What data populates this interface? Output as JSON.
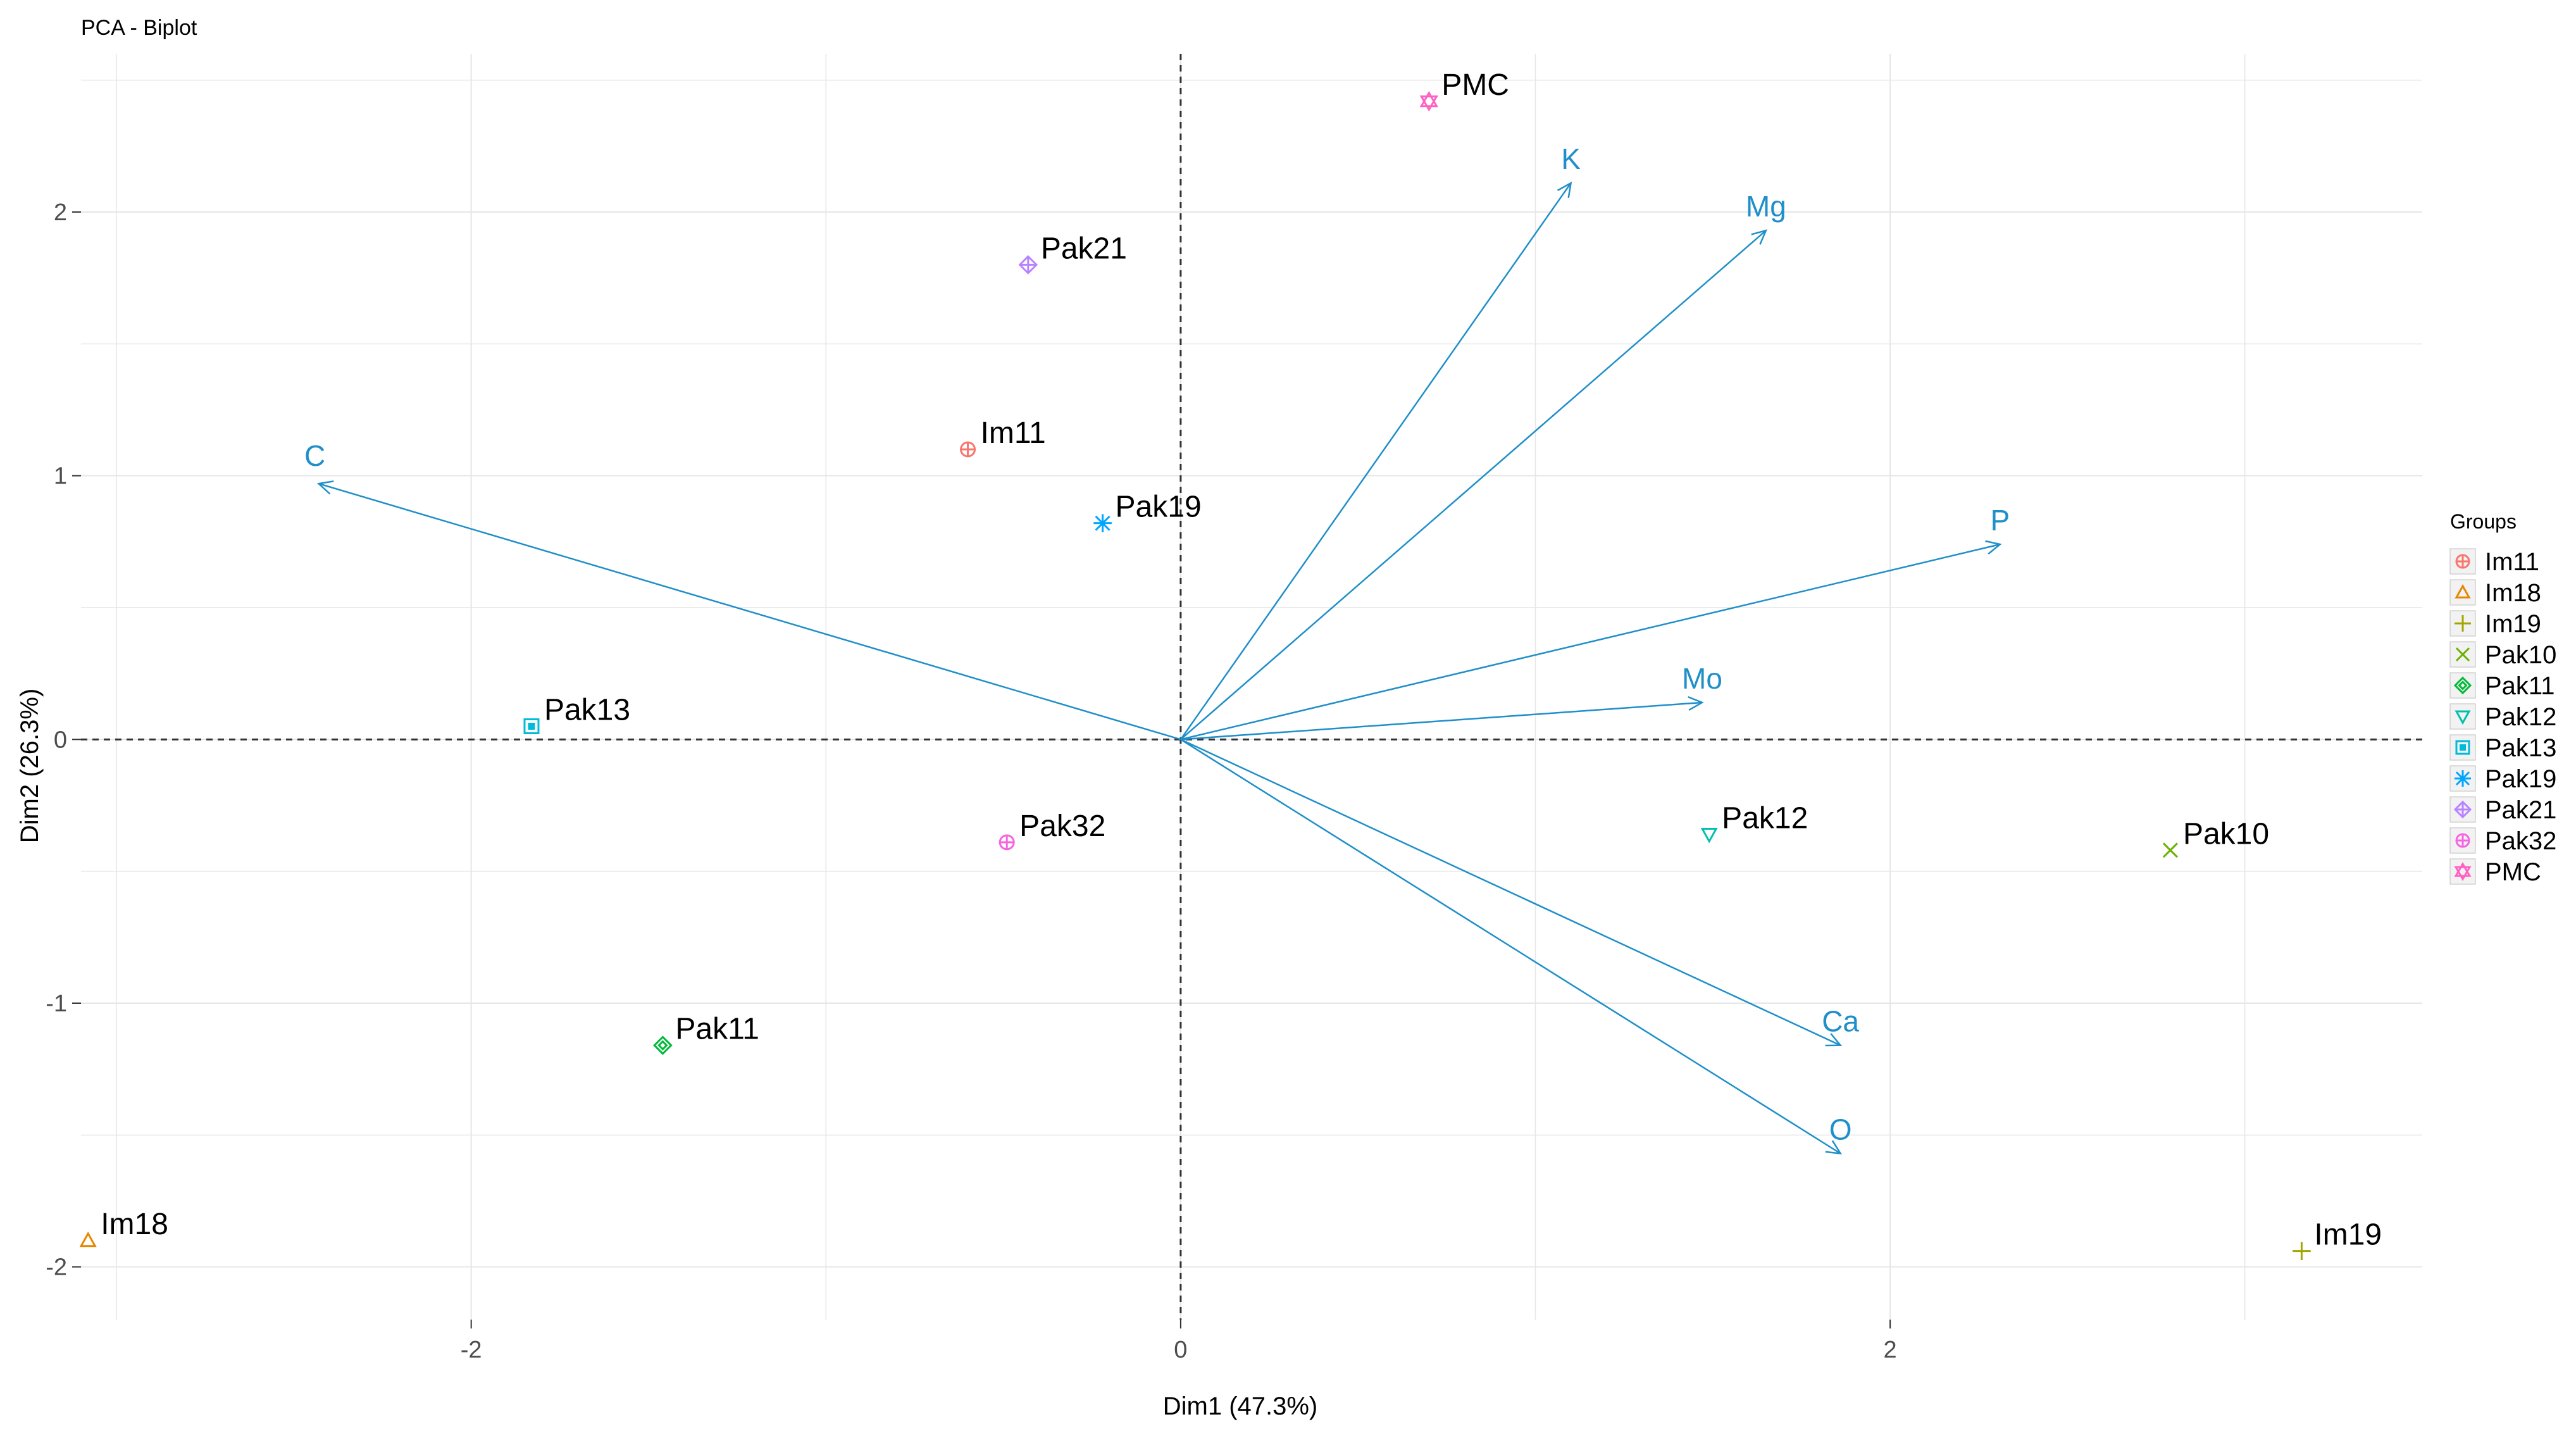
{
  "chart_data": {
    "type": "scatter",
    "title": "PCA - Biplot",
    "xlabel": "Dim1 (47.3%)",
    "ylabel": "Dim2 (26.3%)",
    "xlim": [
      -3.1,
      3.5
    ],
    "ylim": [
      -2.2,
      2.6
    ],
    "grid": true,
    "legend_placement": "right",
    "zero_lines": true,
    "x_ticks": [
      {
        "value": -2,
        "label": "-2"
      },
      {
        "value": 0,
        "label": "0"
      },
      {
        "value": 2,
        "label": "2"
      }
    ],
    "y_ticks": [
      {
        "value": -2,
        "label": "-2"
      },
      {
        "value": -1,
        "label": "-1"
      },
      {
        "value": 0,
        "label": "0"
      },
      {
        "value": 1,
        "label": "1"
      },
      {
        "value": 2,
        "label": "2"
      }
    ],
    "legend": {
      "title": "Groups",
      "entries": [
        {
          "name": "Im11",
          "color": "#F8766D",
          "marker": "circle-plus"
        },
        {
          "name": "Im18",
          "color": "#E58700",
          "marker": "triangle"
        },
        {
          "name": "Im19",
          "color": "#A3A500",
          "marker": "plus"
        },
        {
          "name": "Pak10",
          "color": "#6BB100",
          "marker": "cross"
        },
        {
          "name": "Pak11",
          "color": "#00BA38",
          "marker": "diamond"
        },
        {
          "name": "Pak12",
          "color": "#00C0AF",
          "marker": "triangle-down"
        },
        {
          "name": "Pak13",
          "color": "#00BCD8",
          "marker": "square"
        },
        {
          "name": "Pak19",
          "color": "#00A5FF",
          "marker": "asterisk"
        },
        {
          "name": "Pak21",
          "color": "#B983FF",
          "marker": "diamond-plus"
        },
        {
          "name": "Pak32",
          "color": "#F564E3",
          "marker": "circle-plus"
        },
        {
          "name": "PMC",
          "color": "#FF61C3",
          "marker": "star"
        }
      ]
    },
    "points": [
      {
        "label": "PMC",
        "x": 0.7,
        "y": 2.42
      },
      {
        "label": "Pak21",
        "x": -0.43,
        "y": 1.8
      },
      {
        "label": "Im11",
        "x": -0.6,
        "y": 1.1
      },
      {
        "label": "Pak19",
        "x": -0.22,
        "y": 0.82
      },
      {
        "label": "Pak13",
        "x": -1.83,
        "y": 0.05
      },
      {
        "label": "Pak32",
        "x": -0.49,
        "y": -0.39
      },
      {
        "label": "Pak12",
        "x": 1.49,
        "y": -0.36
      },
      {
        "label": "Pak10",
        "x": 2.79,
        "y": -0.42
      },
      {
        "label": "Pak11",
        "x": -1.46,
        "y": -1.16
      },
      {
        "label": "Im18",
        "x": -3.08,
        "y": -1.9
      },
      {
        "label": "Im19",
        "x": 3.16,
        "y": -1.94
      }
    ],
    "arrow_color": "#1F8FC9",
    "vectors": [
      {
        "label": "K",
        "x": 1.1,
        "y": 2.11
      },
      {
        "label": "Mg",
        "x": 1.65,
        "y": 1.93
      },
      {
        "label": "C",
        "x": -2.43,
        "y": 0.97
      },
      {
        "label": "P",
        "x": 2.31,
        "y": 0.74
      },
      {
        "label": "Mo",
        "x": 1.47,
        "y": 0.14
      },
      {
        "label": "Ca",
        "x": 1.86,
        "y": -1.16
      },
      {
        "label": "O",
        "x": 1.86,
        "y": -1.57
      }
    ]
  }
}
